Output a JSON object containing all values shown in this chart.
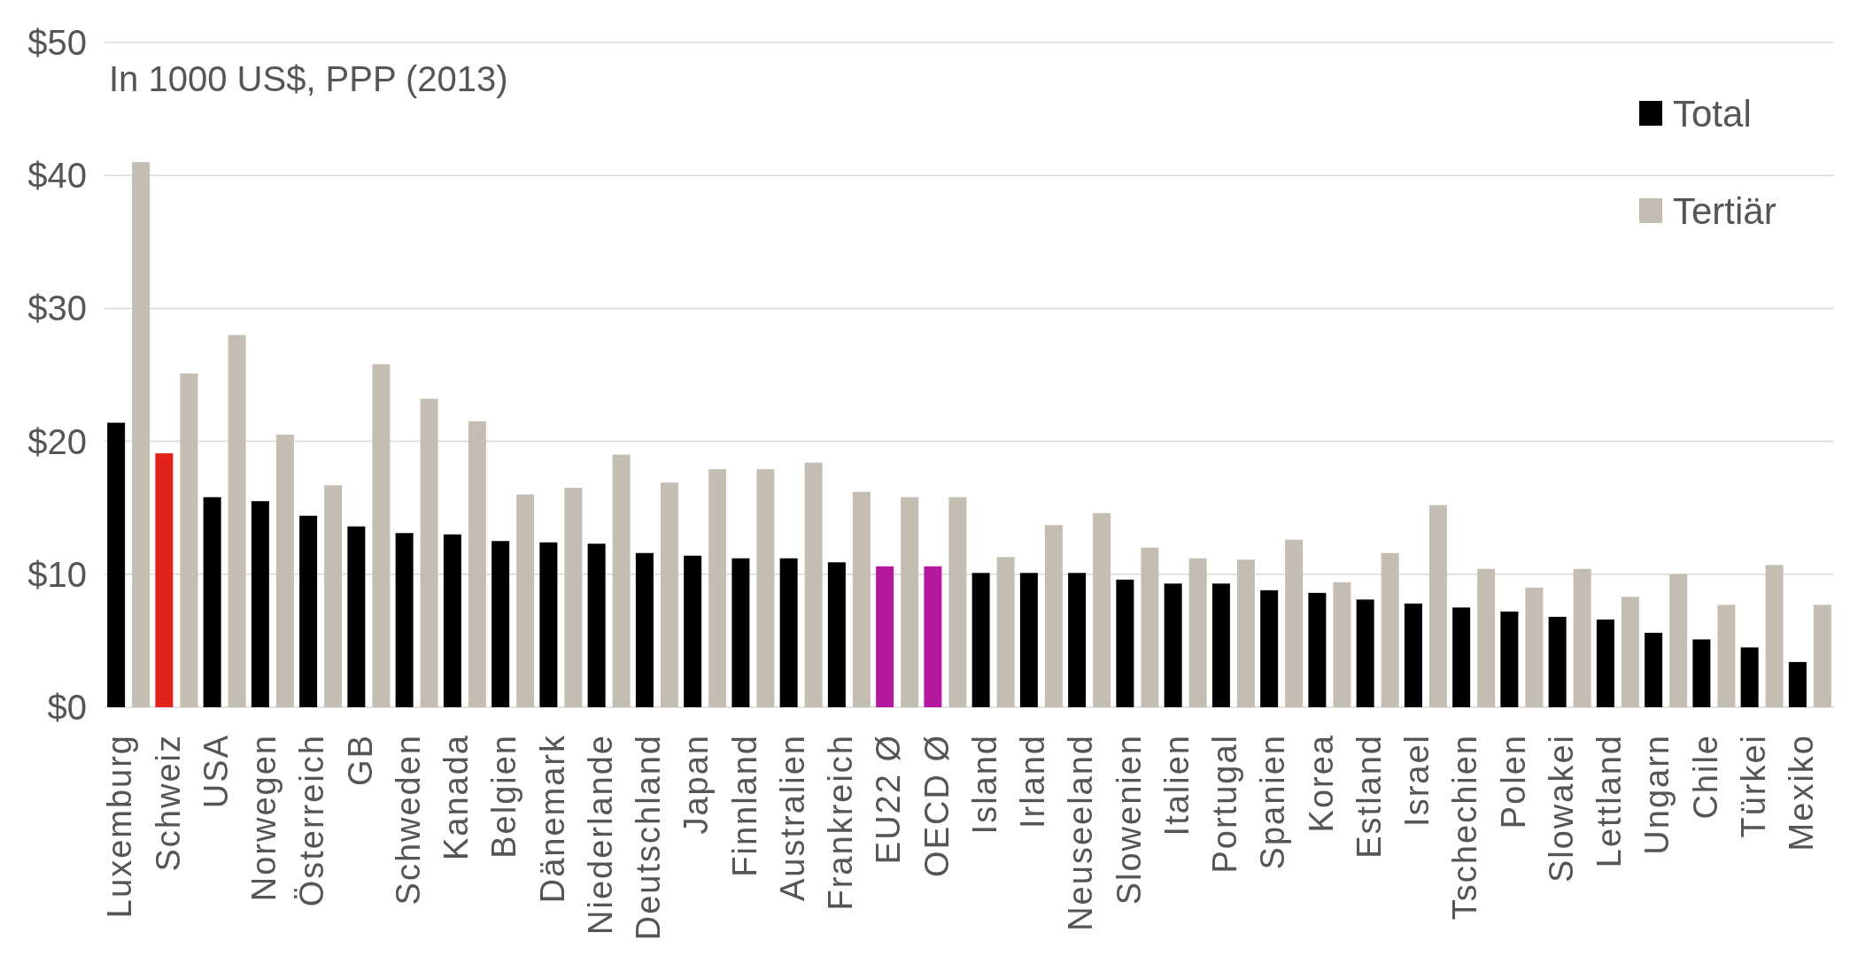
{
  "chart_data": {
    "type": "bar",
    "title": "In 1000 US$, PPP   (2013)",
    "categories": [
      "Luxemburg",
      "Schweiz",
      "USA",
      "Norwegen",
      "Österreich",
      "GB",
      "Schweden",
      "Kanada",
      "Belgien",
      "Dänemark",
      "Niederlande",
      "Deutschland",
      "Japan",
      "Finnland",
      "Australien",
      "Frankreich",
      "EU22 Ø",
      "OECD Ø",
      "Island",
      "Irland",
      "Neuseeland",
      "Slowenien",
      "Italien",
      "Portugal",
      "Spanien",
      "Korea",
      "Estland",
      "Israel",
      "Tschechien",
      "Polen",
      "Slowakei",
      "Lettland",
      "Ungarn",
      "Chile",
      "Türkei",
      "Mexiko"
    ],
    "series": [
      {
        "name": "Total",
        "color": "#000000",
        "colors": [
          "#000000",
          "#e2231a",
          "#000000",
          "#000000",
          "#000000",
          "#000000",
          "#000000",
          "#000000",
          "#000000",
          "#000000",
          "#000000",
          "#000000",
          "#000000",
          "#000000",
          "#000000",
          "#000000",
          "#b5179e",
          "#b5179e",
          "#000000",
          "#000000",
          "#000000",
          "#000000",
          "#000000",
          "#000000",
          "#000000",
          "#000000",
          "#000000",
          "#000000",
          "#000000",
          "#000000",
          "#000000",
          "#000000",
          "#000000",
          "#000000",
          "#000000",
          "#000000"
        ],
        "values": [
          21.4,
          19.1,
          15.8,
          15.5,
          14.4,
          13.6,
          13.1,
          13.0,
          12.5,
          12.4,
          12.3,
          11.6,
          11.4,
          11.2,
          11.2,
          10.9,
          10.6,
          10.6,
          10.1,
          10.1,
          10.1,
          9.6,
          9.3,
          9.3,
          8.8,
          8.6,
          8.1,
          7.8,
          7.5,
          7.2,
          6.8,
          6.6,
          5.6,
          5.1,
          4.5,
          3.4
        ]
      },
      {
        "name": "Tertiär",
        "color": "#c4bdb2",
        "values": [
          41.0,
          25.1,
          28.0,
          20.5,
          16.7,
          25.8,
          23.2,
          21.5,
          16.0,
          16.5,
          19.0,
          16.9,
          17.9,
          17.9,
          18.4,
          16.2,
          15.8,
          15.8,
          11.3,
          13.7,
          14.6,
          12.0,
          11.2,
          11.1,
          12.6,
          9.4,
          11.6,
          15.2,
          10.4,
          9.0,
          10.4,
          8.3,
          10.0,
          7.7,
          10.7,
          7.7
        ]
      }
    ],
    "ylim": [
      0,
      50
    ],
    "yticks": [
      {
        "value": 0,
        "label": "$0"
      },
      {
        "value": 10,
        "label": "$10"
      },
      {
        "value": 20,
        "label": "$20"
      },
      {
        "value": 30,
        "label": "$30"
      },
      {
        "value": 40,
        "label": "$40"
      },
      {
        "value": 50,
        "label": "$50"
      }
    ],
    "grid": "y",
    "legend": "top right"
  }
}
